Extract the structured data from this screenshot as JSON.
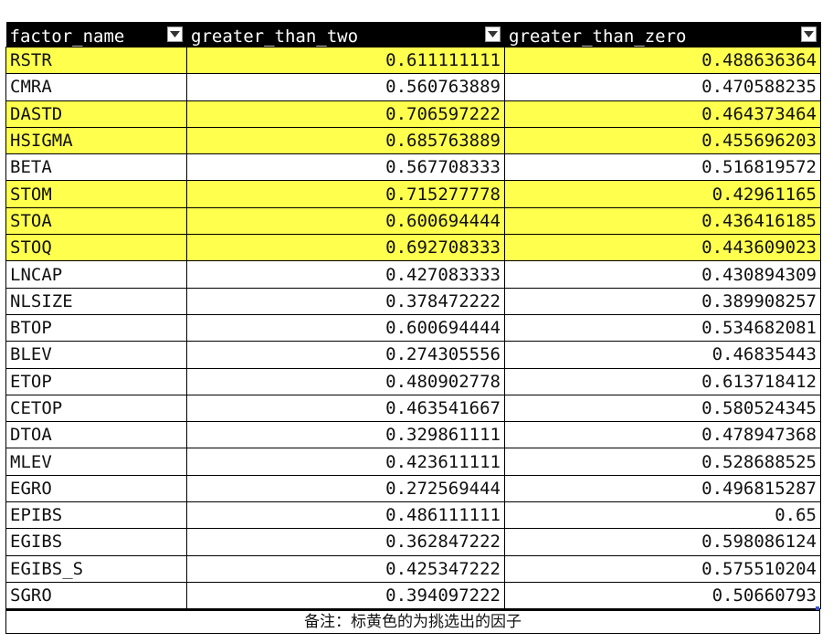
{
  "headers": {
    "factor_name": "factor_name",
    "greater_than_two": "greater_than_two",
    "greater_than_zero": "greater_than_zero",
    "filter_icon": "dropdown-arrow-icon"
  },
  "colors": {
    "highlight": "#ffff4d",
    "header_bg": "#000000",
    "header_fg": "#ffffff"
  },
  "rows": [
    {
      "factor": "RSTR",
      "two": "0.611111111",
      "zero": "0.488636364",
      "highlighted": true
    },
    {
      "factor": "CMRA",
      "two": "0.560763889",
      "zero": "0.470588235",
      "highlighted": false
    },
    {
      "factor": "DASTD",
      "two": "0.706597222",
      "zero": "0.464373464",
      "highlighted": true
    },
    {
      "factor": "HSIGMA",
      "two": "0.685763889",
      "zero": "0.455696203",
      "highlighted": true
    },
    {
      "factor": "BETA",
      "two": "0.567708333",
      "zero": "0.516819572",
      "highlighted": false
    },
    {
      "factor": "STOM",
      "two": "0.715277778",
      "zero": "0.42961165",
      "highlighted": true
    },
    {
      "factor": "STOA",
      "two": "0.600694444",
      "zero": "0.436416185",
      "highlighted": true
    },
    {
      "factor": "STOQ",
      "two": "0.692708333",
      "zero": "0.443609023",
      "highlighted": true
    },
    {
      "factor": "LNCAP",
      "two": "0.427083333",
      "zero": "0.430894309",
      "highlighted": false
    },
    {
      "factor": "NLSIZE",
      "two": "0.378472222",
      "zero": "0.389908257",
      "highlighted": false
    },
    {
      "factor": "BTOP",
      "two": "0.600694444",
      "zero": "0.534682081",
      "highlighted": false
    },
    {
      "factor": "BLEV",
      "two": "0.274305556",
      "zero": "0.46835443",
      "highlighted": false
    },
    {
      "factor": "ETOP",
      "two": "0.480902778",
      "zero": "0.613718412",
      "highlighted": false
    },
    {
      "factor": "CETOP",
      "two": "0.463541667",
      "zero": "0.580524345",
      "highlighted": false
    },
    {
      "factor": "DTOA",
      "two": "0.329861111",
      "zero": "0.478947368",
      "highlighted": false
    },
    {
      "factor": "MLEV",
      "two": "0.423611111",
      "zero": "0.528688525",
      "highlighted": false
    },
    {
      "factor": "EGRO",
      "two": "0.272569444",
      "zero": "0.496815287",
      "highlighted": false
    },
    {
      "factor": "EPIBS",
      "two": "0.486111111",
      "zero": "0.65",
      "highlighted": false
    },
    {
      "factor": "EGIBS",
      "two": "0.362847222",
      "zero": "0.598086124",
      "highlighted": false
    },
    {
      "factor": "EGIBS_S",
      "two": "0.425347222",
      "zero": "0.575510204",
      "highlighted": false
    },
    {
      "factor": "SGRO",
      "two": "0.394097222",
      "zero": "0.50660793",
      "highlighted": false
    }
  ],
  "note": "备注：标黄色的为挑选出的因子"
}
